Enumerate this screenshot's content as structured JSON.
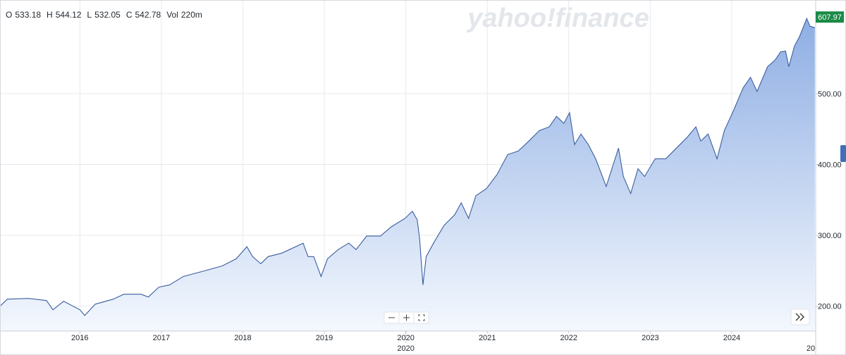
{
  "chart_data": {
    "type": "area",
    "watermark": "yahoo!finance",
    "ohlc": [
      {
        "label": "O",
        "value": 533.18
      },
      {
        "label": "H",
        "value": 544.12
      },
      {
        "label": "L",
        "value": 532.05
      },
      {
        "label": "C",
        "value": 542.78
      },
      {
        "label": "Vol",
        "value": "220m"
      }
    ],
    "last_price": 607.97,
    "crosshair_label": "2020",
    "edge_label": "20",
    "color": "#3b5f9f",
    "fill_top": "#8eaee3",
    "fill_bottom": "#f4f8fe",
    "x": [
      2015.02,
      2015.11,
      2015.37,
      2015.59,
      2015.67,
      2015.8,
      2016.0,
      2016.06,
      2016.19,
      2016.41,
      2016.54,
      2016.75,
      2016.84,
      2016.97,
      2017.1,
      2017.27,
      2017.53,
      2017.75,
      2017.92,
      2018.05,
      2018.12,
      2018.22,
      2018.31,
      2018.48,
      2018.74,
      2018.8,
      2018.87,
      2018.96,
      2019.04,
      2019.17,
      2019.3,
      2019.39,
      2019.52,
      2019.69,
      2019.82,
      2019.99,
      2020.08,
      2020.14,
      2020.17,
      2020.21,
      2020.25,
      2020.34,
      2020.47,
      2020.6,
      2020.68,
      2020.77,
      2020.86,
      2020.99,
      2021.12,
      2021.25,
      2021.38,
      2021.51,
      2021.64,
      2021.76,
      2021.85,
      2021.94,
      2022.01,
      2022.07,
      2022.15,
      2022.24,
      2022.33,
      2022.46,
      2022.54,
      2022.61,
      2022.67,
      2022.76,
      2022.85,
      2022.93,
      2023.06,
      2023.19,
      2023.32,
      2023.45,
      2023.56,
      2023.62,
      2023.71,
      2023.82,
      2023.91,
      2024.01,
      2024.14,
      2024.23,
      2024.31,
      2024.44,
      2024.53,
      2024.6,
      2024.66,
      2024.7,
      2024.77,
      2024.83,
      2024.92,
      2024.96,
      2025.02
    ],
    "values": [
      200,
      210,
      211,
      208,
      195,
      207,
      195,
      187,
      203,
      210,
      217,
      217,
      213,
      227,
      230,
      242,
      250,
      257,
      267,
      284,
      270,
      260,
      270,
      275,
      289,
      270,
      270,
      242,
      267,
      280,
      289,
      280,
      299,
      299,
      312,
      324,
      334,
      322,
      294,
      230,
      270,
      289,
      314,
      329,
      346,
      324,
      356,
      366,
      386,
      414,
      419,
      433,
      448,
      453,
      468,
      458,
      473,
      428,
      443,
      428,
      408,
      369,
      398,
      423,
      383,
      359,
      394,
      383,
      408,
      408,
      423,
      438,
      453,
      433,
      443,
      408,
      448,
      473,
      508,
      523,
      503,
      538,
      547,
      559,
      560,
      538,
      567,
      580,
      606,
      595,
      593
    ],
    "xlim": [
      2015.02,
      2025.03
    ],
    "xticks": [
      2016,
      2017,
      2018,
      2019,
      2020,
      2021,
      2022,
      2023,
      2024
    ],
    "ylim": [
      165,
      632
    ],
    "yticks": [
      {
        "value": 200,
        "label": "200.00"
      },
      {
        "value": 300,
        "label": "300.00"
      },
      {
        "value": 400,
        "label": "400.00"
      },
      {
        "value": 500,
        "label": "500.00"
      }
    ],
    "grid": true
  }
}
